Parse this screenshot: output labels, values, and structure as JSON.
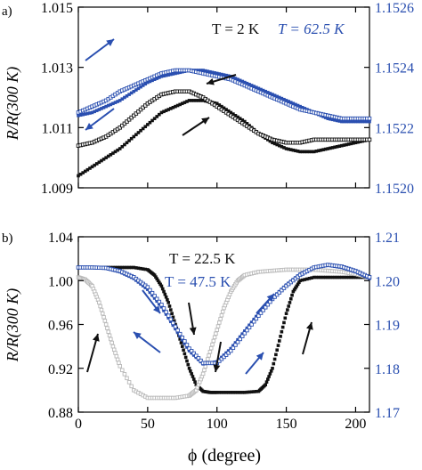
{
  "figure": {
    "shared_xlabel": "ϕ (degree)",
    "colors": {
      "black": "#111111",
      "blue": "#2a4fb0",
      "gray": "#b8b8b8",
      "axis": "#000000"
    }
  },
  "chart_data": [
    {
      "panel": "a)",
      "type": "scatter",
      "title": "",
      "ylabel": "R/R(300 K)",
      "y2label": "",
      "xlim": [
        0,
        210
      ],
      "ylim": [
        1.009,
        1.015
      ],
      "y2lim": [
        1.152,
        1.1526
      ],
      "yticks": [
        "1.009",
        "1.011",
        "1.013",
        "1.015"
      ],
      "y2ticks": [
        "1.1520",
        "1.1522",
        "1.1524",
        "1.1526"
      ],
      "xticks_shown": false,
      "annotations": [
        "T = 2 K",
        "T = 62.5 K"
      ],
      "series": [
        {
          "name": "T = 2 K",
          "marker": "filled-square",
          "color": "black",
          "axis": "left",
          "x": [
            0,
            10,
            20,
            30,
            40,
            50,
            60,
            70,
            80,
            90,
            100,
            110,
            120,
            130,
            140,
            150,
            160,
            170,
            180,
            190,
            200,
            210
          ],
          "y": [
            1.0094,
            1.0097,
            1.01,
            1.0103,
            1.0107,
            1.0111,
            1.0115,
            1.0117,
            1.0119,
            1.0119,
            1.0118,
            1.0115,
            1.0112,
            1.0108,
            1.0105,
            1.0103,
            1.0102,
            1.0102,
            1.0103,
            1.0104,
            1.0105,
            1.0106
          ]
        },
        {
          "name": "T = 2 K",
          "marker": "open-square",
          "color": "black",
          "axis": "left",
          "x": [
            0,
            10,
            20,
            30,
            40,
            50,
            60,
            70,
            80,
            90,
            100,
            110,
            120,
            130,
            140,
            150,
            160,
            170,
            180,
            190,
            200,
            210
          ],
          "y": [
            1.0104,
            1.0105,
            1.0107,
            1.011,
            1.0114,
            1.0118,
            1.0121,
            1.0122,
            1.0122,
            1.012,
            1.0117,
            1.0114,
            1.0111,
            1.0108,
            1.0106,
            1.0105,
            1.0105,
            1.0106,
            1.0106,
            1.0106,
            1.0106,
            1.0106
          ]
        },
        {
          "name": "T = 62.5 K",
          "marker": "filled-square",
          "color": "blue",
          "axis": "right",
          "x": [
            0,
            10,
            20,
            30,
            40,
            50,
            60,
            70,
            80,
            90,
            100,
            110,
            120,
            130,
            140,
            150,
            160,
            170,
            180,
            190,
            200,
            210
          ],
          "y": [
            1.15224,
            1.15225,
            1.15227,
            1.15229,
            1.15232,
            1.15235,
            1.15237,
            1.15238,
            1.15239,
            1.15239,
            1.15238,
            1.15237,
            1.15235,
            1.15233,
            1.15231,
            1.15229,
            1.15227,
            1.15225,
            1.15223,
            1.15222,
            1.15222,
            1.15222
          ]
        },
        {
          "name": "T = 62.5 K",
          "marker": "open-square",
          "color": "blue",
          "axis": "right",
          "x": [
            0,
            10,
            20,
            30,
            40,
            50,
            60,
            70,
            80,
            90,
            100,
            110,
            120,
            130,
            140,
            150,
            160,
            170,
            180,
            190,
            200,
            210
          ],
          "y": [
            1.15225,
            1.15227,
            1.15229,
            1.15232,
            1.15234,
            1.15236,
            1.15238,
            1.15239,
            1.15239,
            1.15238,
            1.15237,
            1.15236,
            1.15234,
            1.15232,
            1.1523,
            1.15228,
            1.15226,
            1.15225,
            1.15224,
            1.15223,
            1.15223,
            1.15223
          ]
        }
      ]
    },
    {
      "panel": "b)",
      "type": "scatter",
      "title": "",
      "xlabel": "ϕ (degree)",
      "ylabel": "R/R(300 K)",
      "y2label": "",
      "xlim": [
        0,
        210
      ],
      "ylim": [
        0.88,
        1.04
      ],
      "y2lim": [
        1.17,
        1.21
      ],
      "xticks": [
        "0",
        "50",
        "100",
        "150",
        "200"
      ],
      "yticks": [
        "0.88",
        "0.92",
        "0.96",
        "1.00",
        "1.04"
      ],
      "y2ticks": [
        "1.17",
        "1.18",
        "1.19",
        "1.20",
        "1.21"
      ],
      "annotations": [
        "T = 22.5 K",
        "T = 47.5 K"
      ],
      "series": [
        {
          "name": "T = 22.5 K",
          "marker": "filled-square",
          "color": "black",
          "axis": "left",
          "x": [
            0,
            10,
            20,
            30,
            40,
            50,
            55,
            60,
            65,
            70,
            75,
            80,
            85,
            90,
            95,
            100,
            110,
            120,
            130,
            135,
            140,
            145,
            150,
            155,
            160,
            170,
            180,
            190,
            200,
            210
          ],
          "y": [
            1.012,
            1.012,
            1.012,
            1.012,
            1.012,
            1.01,
            1.005,
            0.995,
            0.98,
            0.96,
            0.94,
            0.92,
            0.905,
            0.899,
            0.898,
            0.898,
            0.898,
            0.898,
            0.899,
            0.905,
            0.92,
            0.945,
            0.97,
            0.99,
            1.0,
            1.003,
            1.003,
            1.003,
            1.003,
            1.003
          ]
        },
        {
          "name": "T = 22.5 K",
          "marker": "open-square",
          "color": "gray",
          "axis": "left",
          "x": [
            0,
            5,
            10,
            15,
            20,
            25,
            30,
            40,
            50,
            60,
            70,
            80,
            85,
            90,
            95,
            100,
            105,
            110,
            115,
            120,
            130,
            140,
            150,
            160,
            170,
            180,
            190,
            200,
            210
          ],
          "y": [
            1.003,
            1.001,
            0.995,
            0.98,
            0.96,
            0.94,
            0.922,
            0.9,
            0.893,
            0.893,
            0.893,
            0.895,
            0.9,
            0.915,
            0.935,
            0.955,
            0.975,
            0.99,
            1.0,
            1.005,
            1.008,
            1.009,
            1.01,
            1.01,
            1.01,
            1.009,
            1.008,
            1.006,
            1.003
          ]
        },
        {
          "name": "T = 47.5 K",
          "marker": "filled-square",
          "color": "blue",
          "axis": "right",
          "x": [
            0,
            10,
            20,
            30,
            40,
            50,
            60,
            70,
            80,
            90,
            100,
            110,
            120,
            130,
            140,
            150,
            160,
            170,
            180,
            190,
            200,
            210
          ],
          "y": [
            1.203,
            1.203,
            1.2028,
            1.202,
            1.2005,
            1.198,
            1.194,
            1.189,
            1.184,
            1.181,
            1.1815,
            1.1845,
            1.1885,
            1.1925,
            1.196,
            1.199,
            1.2015,
            1.203,
            1.2035,
            1.203,
            1.202,
            1.2005
          ]
        },
        {
          "name": "T = 47.5 K",
          "marker": "open-square",
          "color": "blue",
          "axis": "right",
          "x": [
            0,
            10,
            20,
            30,
            40,
            50,
            60,
            70,
            80,
            90,
            100,
            110,
            120,
            130,
            140,
            150,
            160,
            170,
            180,
            190,
            200,
            210
          ],
          "y": [
            1.203,
            1.203,
            1.2029,
            1.2022,
            1.2008,
            1.1985,
            1.1945,
            1.1895,
            1.1845,
            1.1812,
            1.1812,
            1.184,
            1.188,
            1.192,
            1.1958,
            1.1988,
            1.2013,
            1.203,
            1.2036,
            1.2032,
            1.2022,
            1.2008
          ]
        }
      ]
    }
  ]
}
